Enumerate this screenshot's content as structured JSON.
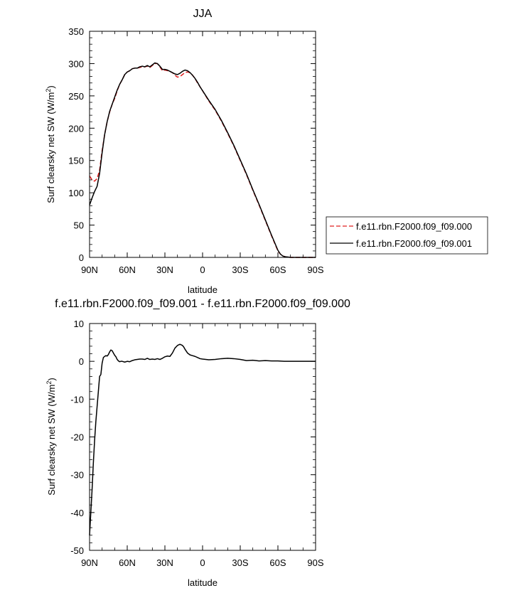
{
  "chart_data": [
    {
      "type": "line",
      "title": "JJA",
      "xlabel": "latitude",
      "ylabel": "Surf clearsky net SW (W/m",
      "ylabel_sup": "2",
      "ylabel_close": ")",
      "xlim": [
        90,
        -90
      ],
      "ylim": [
        0,
        350
      ],
      "xticks": [
        90,
        60,
        30,
        0,
        -30,
        -60,
        -90
      ],
      "xtick_labels": [
        "90N",
        "60N",
        "30N",
        "0",
        "30S",
        "60S",
        "90S"
      ],
      "yticks": [
        0,
        50,
        100,
        150,
        200,
        250,
        300,
        350
      ],
      "ytick_labels": [
        "0",
        "50",
        "100",
        "150",
        "200",
        "250",
        "300",
        "350"
      ],
      "legend": "right",
      "series": [
        {
          "name": "f.e11.rbn.F2000.f09_f09.000",
          "color": "#e02020",
          "dash": "dashed",
          "x": [
            90,
            88,
            86,
            84,
            82,
            80,
            78,
            76,
            74,
            72,
            70,
            68,
            66,
            64,
            62,
            60,
            58,
            56,
            54,
            52,
            50,
            48,
            46,
            44,
            42,
            40,
            38,
            36,
            34,
            32,
            30,
            28,
            26,
            24,
            22,
            20,
            18,
            16,
            14,
            12,
            10,
            8,
            6,
            4,
            2,
            0,
            -5,
            -10,
            -15,
            -20,
            -25,
            -30,
            -35,
            -40,
            -45,
            -50,
            -55,
            -60,
            -62,
            -64,
            -66,
            -68,
            -70,
            -75,
            -80,
            -85,
            -90
          ],
          "y": [
            126,
            120,
            118,
            122,
            135,
            165,
            190,
            210,
            225,
            237,
            246,
            258,
            268,
            275,
            283,
            287,
            289,
            292,
            293,
            293,
            294,
            295,
            295,
            296,
            294,
            297,
            300,
            300,
            295,
            289,
            290,
            289,
            288,
            286,
            282,
            279,
            280,
            283,
            286,
            287,
            286,
            282,
            277,
            270,
            264,
            258,
            242,
            228,
            211,
            192,
            172,
            150,
            128,
            104,
            81,
            57,
            33,
            10,
            5,
            2,
            1,
            0.5,
            0,
            0,
            0,
            0,
            0
          ]
        },
        {
          "name": "f.e11.rbn.F2000.f09_f09.001",
          "color": "#000000",
          "dash": "solid",
          "x": [
            90,
            88,
            86,
            84,
            82,
            80,
            78,
            76,
            74,
            72,
            70,
            68,
            66,
            64,
            62,
            60,
            58,
            56,
            54,
            52,
            50,
            48,
            46,
            44,
            42,
            40,
            38,
            36,
            34,
            32,
            30,
            28,
            26,
            24,
            22,
            20,
            18,
            16,
            14,
            12,
            10,
            8,
            6,
            4,
            2,
            0,
            -5,
            -10,
            -15,
            -20,
            -25,
            -30,
            -35,
            -40,
            -45,
            -50,
            -55,
            -60,
            -62,
            -64,
            -66,
            -68,
            -70,
            -75,
            -80,
            -85,
            -90
          ],
          "y": [
            81,
            92,
            102,
            110,
            130,
            162,
            190,
            210,
            226,
            237,
            248,
            259,
            268,
            275,
            283,
            287,
            289,
            292,
            293,
            293,
            295,
            296,
            295,
            297,
            295,
            298,
            301,
            300,
            296,
            291,
            291,
            290,
            288,
            286,
            284,
            283,
            285,
            288,
            290,
            289,
            286,
            282,
            277,
            271,
            264,
            258,
            243,
            229,
            212,
            193,
            173,
            151,
            129,
            105,
            82,
            58,
            34,
            11,
            5,
            2,
            1,
            0.5,
            0,
            0,
            0,
            0,
            0
          ]
        }
      ]
    },
    {
      "type": "line",
      "title": "f.e11.rbn.F2000.f09_f09.001 - f.e11.rbn.F2000.f09_f09.000",
      "xlabel": "latitude",
      "ylabel": "Surf clearsky net SW (W/m",
      "ylabel_sup": "2",
      "ylabel_close": ")",
      "xlim": [
        90,
        -90
      ],
      "ylim": [
        -50,
        10
      ],
      "xticks": [
        90,
        60,
        30,
        0,
        -30,
        -60,
        -90
      ],
      "xtick_labels": [
        "90N",
        "60N",
        "30N",
        "0",
        "30S",
        "60S",
        "90S"
      ],
      "yticks": [
        -50,
        -40,
        -30,
        -20,
        -10,
        0,
        10
      ],
      "ytick_labels": [
        "-50",
        "-40",
        "-30",
        "-20",
        "-10",
        "0",
        "10"
      ],
      "series": [
        {
          "color": "#000000",
          "dash": "solid",
          "x": [
            90,
            89,
            88,
            87,
            86,
            85,
            84,
            83,
            82,
            81,
            80,
            79,
            78,
            77,
            76,
            75,
            74,
            73,
            72,
            71,
            70,
            69,
            68,
            67,
            66,
            65,
            64,
            62,
            60,
            58,
            56,
            54,
            52,
            50,
            48,
            46,
            44,
            42,
            40,
            38,
            36,
            34,
            32,
            30,
            28,
            26,
            24,
            22,
            20,
            18,
            16,
            15,
            14,
            12,
            10,
            8,
            6,
            4,
            2,
            0,
            -5,
            -10,
            -15,
            -20,
            -25,
            -30,
            -35,
            -40,
            -45,
            -50,
            -55,
            -60,
            -65,
            -70,
            -75,
            -80,
            -85,
            -90
          ],
          "y": [
            -46,
            -40,
            -34,
            -27,
            -21,
            -16,
            -12,
            -8,
            -4,
            -3.5,
            -0.5,
            1,
            1.3,
            1.5,
            1.4,
            1.8,
            2.5,
            3,
            2.8,
            2.2,
            1.6,
            1.2,
            0.5,
            0.1,
            -0.1,
            0,
            0,
            -0.2,
            0,
            -0.1,
            0.2,
            0.4,
            0.5,
            0.6,
            0.6,
            0.5,
            0.8,
            0.5,
            0.6,
            0.5,
            0.7,
            0.5,
            0.8,
            1.2,
            1.4,
            1.3,
            2.2,
            3.5,
            4.2,
            4.5,
            4.2,
            3.8,
            3.2,
            2.2,
            1.7,
            1.5,
            1.3,
            1.0,
            0.7,
            0.6,
            0.4,
            0.5,
            0.7,
            0.8,
            0.7,
            0.5,
            0.2,
            0.3,
            0.1,
            0.2,
            0.1,
            0.1,
            0,
            0,
            0,
            0,
            0,
            0
          ]
        }
      ]
    }
  ]
}
